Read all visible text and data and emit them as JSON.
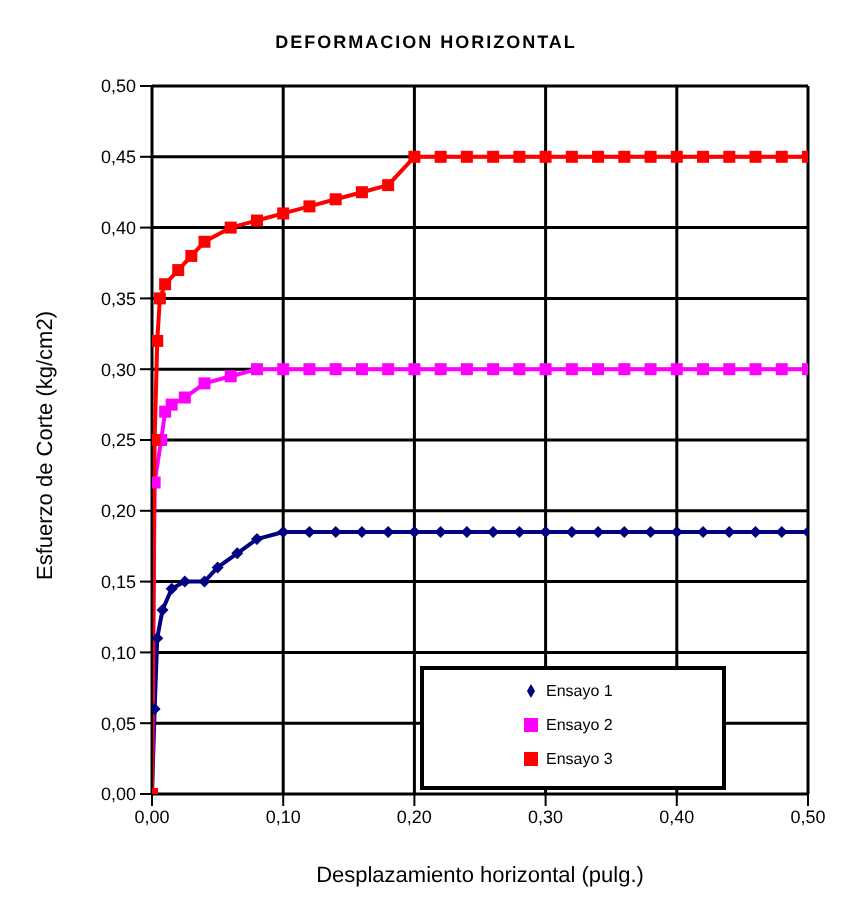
{
  "chart_data": {
    "type": "line",
    "title": "DEFORMACION HORIZONTAL",
    "xlabel": "Desplazamiento horizontal (pulg.)",
    "ylabel": "Esfuerzo de Corte (kg/cm2)",
    "xlim": [
      0,
      0.5
    ],
    "xticks": [
      {
        "value": 0,
        "label": "0,00"
      },
      {
        "value": 0.1,
        "label": "0,10"
      },
      {
        "value": 0.2,
        "label": "0,20"
      },
      {
        "value": 0.3,
        "label": "0,30"
      },
      {
        "value": 0.4,
        "label": "0,40"
      },
      {
        "value": 0.5,
        "label": "0,50"
      }
    ],
    "ylim": [
      0,
      0.5
    ],
    "yticks": [
      {
        "value": 0,
        "label": "0,00"
      },
      {
        "value": 0.05,
        "label": "0,05"
      },
      {
        "value": 0.1,
        "label": "0,10"
      },
      {
        "value": 0.15,
        "label": "0,15"
      },
      {
        "value": 0.2,
        "label": "0,20"
      },
      {
        "value": 0.25,
        "label": "0,25"
      },
      {
        "value": 0.3,
        "label": "0,30"
      },
      {
        "value": 0.35,
        "label": "0,35"
      },
      {
        "value": 0.4,
        "label": "0,40"
      },
      {
        "value": 0.45,
        "label": "0,45"
      },
      {
        "value": 0.5,
        "label": "0,50"
      }
    ],
    "grid": true,
    "legend": "bottom right",
    "line_style": "solid",
    "series": [
      {
        "name": "Ensayo 1",
        "color": "#000080",
        "marker": "diamond",
        "x": [
          0,
          0.002,
          0.004,
          0.008,
          0.015,
          0.025,
          0.04,
          0.05,
          0.065,
          0.08,
          0.1,
          0.12,
          0.14,
          0.16,
          0.18,
          0.2,
          0.22,
          0.24,
          0.26,
          0.28,
          0.3,
          0.32,
          0.34,
          0.36,
          0.38,
          0.4,
          0.42,
          0.44,
          0.46,
          0.48,
          0.5
        ],
        "values": [
          0,
          0.06,
          0.11,
          0.13,
          0.145,
          0.15,
          0.15,
          0.16,
          0.17,
          0.18,
          0.185,
          0.185,
          0.185,
          0.185,
          0.185,
          0.185,
          0.185,
          0.185,
          0.185,
          0.185,
          0.185,
          0.185,
          0.185,
          0.185,
          0.185,
          0.185,
          0.185,
          0.185,
          0.185,
          0.185,
          0.185
        ]
      },
      {
        "name": "Ensayo 2",
        "color": "#ff00ff",
        "marker": "square",
        "x": [
          0,
          0.002,
          0.007,
          0.01,
          0.015,
          0.025,
          0.04,
          0.06,
          0.08,
          0.1,
          0.12,
          0.14,
          0.16,
          0.18,
          0.2,
          0.22,
          0.24,
          0.26,
          0.28,
          0.3,
          0.32,
          0.34,
          0.36,
          0.38,
          0.4,
          0.42,
          0.44,
          0.46,
          0.48,
          0.5
        ],
        "values": [
          0,
          0.22,
          0.25,
          0.27,
          0.275,
          0.28,
          0.29,
          0.295,
          0.3,
          0.3,
          0.3,
          0.3,
          0.3,
          0.3,
          0.3,
          0.3,
          0.3,
          0.3,
          0.3,
          0.3,
          0.3,
          0.3,
          0.3,
          0.3,
          0.3,
          0.3,
          0.3,
          0.3,
          0.3,
          0.3
        ]
      },
      {
        "name": "Ensayo 3",
        "color": "#ff0000",
        "marker": "square",
        "x": [
          0,
          0.002,
          0.004,
          0.006,
          0.01,
          0.02,
          0.03,
          0.04,
          0.06,
          0.08,
          0.1,
          0.12,
          0.14,
          0.16,
          0.18,
          0.2,
          0.22,
          0.24,
          0.26,
          0.28,
          0.3,
          0.32,
          0.34,
          0.36,
          0.38,
          0.4,
          0.42,
          0.44,
          0.46,
          0.48,
          0.5
        ],
        "values": [
          0,
          0.25,
          0.32,
          0.35,
          0.36,
          0.37,
          0.38,
          0.39,
          0.4,
          0.405,
          0.41,
          0.415,
          0.42,
          0.425,
          0.43,
          0.45,
          0.45,
          0.45,
          0.45,
          0.45,
          0.45,
          0.45,
          0.45,
          0.45,
          0.45,
          0.45,
          0.45,
          0.45,
          0.45,
          0.45,
          0.45
        ]
      }
    ]
  }
}
